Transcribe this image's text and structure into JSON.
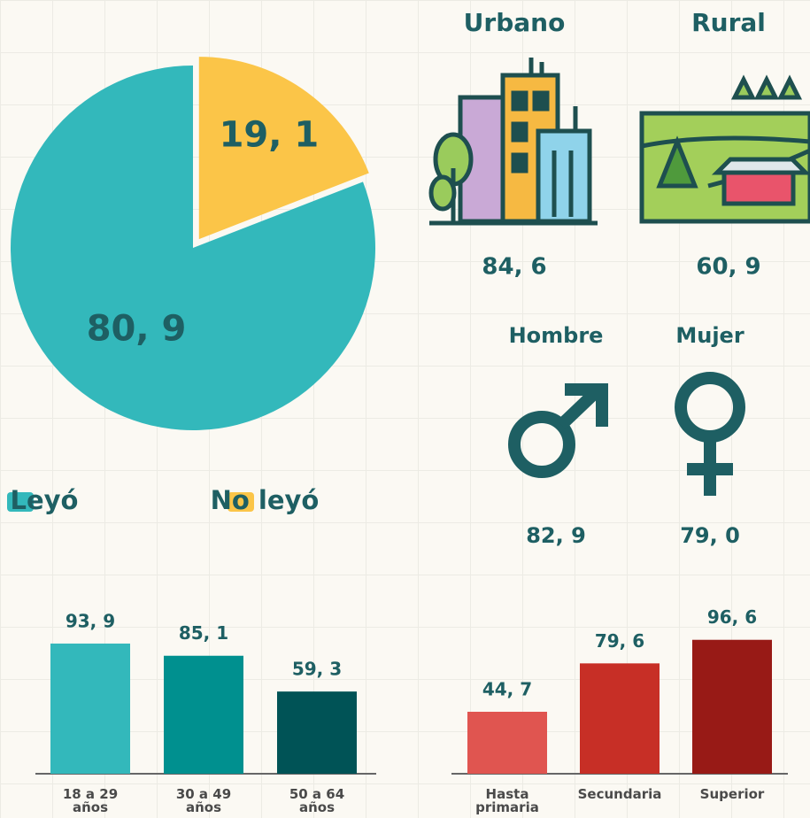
{
  "chart_data": [
    {
      "type": "pie",
      "categories": [
        "Leyó",
        "No leyó"
      ],
      "values": [
        80.9,
        19.1
      ],
      "value_labels": [
        "80, 9",
        "19, 1"
      ],
      "colors": [
        "#33b8bb",
        "#fbc548"
      ],
      "label_colors": [
        "#1e5f63",
        "#b8820f"
      ],
      "explode": [
        false,
        true
      ]
    },
    {
      "type": "bar",
      "categories": [
        "18 a 29 años",
        "30 a 49 años",
        "50 a 64 años"
      ],
      "values": [
        93.9,
        85.1,
        59.3
      ],
      "value_labels": [
        "93, 9",
        "85, 1",
        "59, 3"
      ],
      "colors": [
        "#33b8bb",
        "#00908f",
        "#005356"
      ]
    },
    {
      "type": "bar",
      "categories": [
        "Hasta primaria",
        "Secundaria",
        "Superior"
      ],
      "values": [
        44.7,
        79.6,
        96.6
      ],
      "value_labels": [
        "44, 7",
        "79, 6",
        "96, 6"
      ],
      "colors": [
        "#e05550",
        "#c72f26",
        "#981a16"
      ]
    }
  ],
  "area": [
    {
      "title": "Urbano",
      "value": "84, 6"
    },
    {
      "title": "Rural",
      "value": "60, 9"
    }
  ],
  "sex": [
    {
      "title": "Hombre",
      "value": "82, 9"
    },
    {
      "title": "Mujer",
      "value": "79, 0"
    }
  ]
}
